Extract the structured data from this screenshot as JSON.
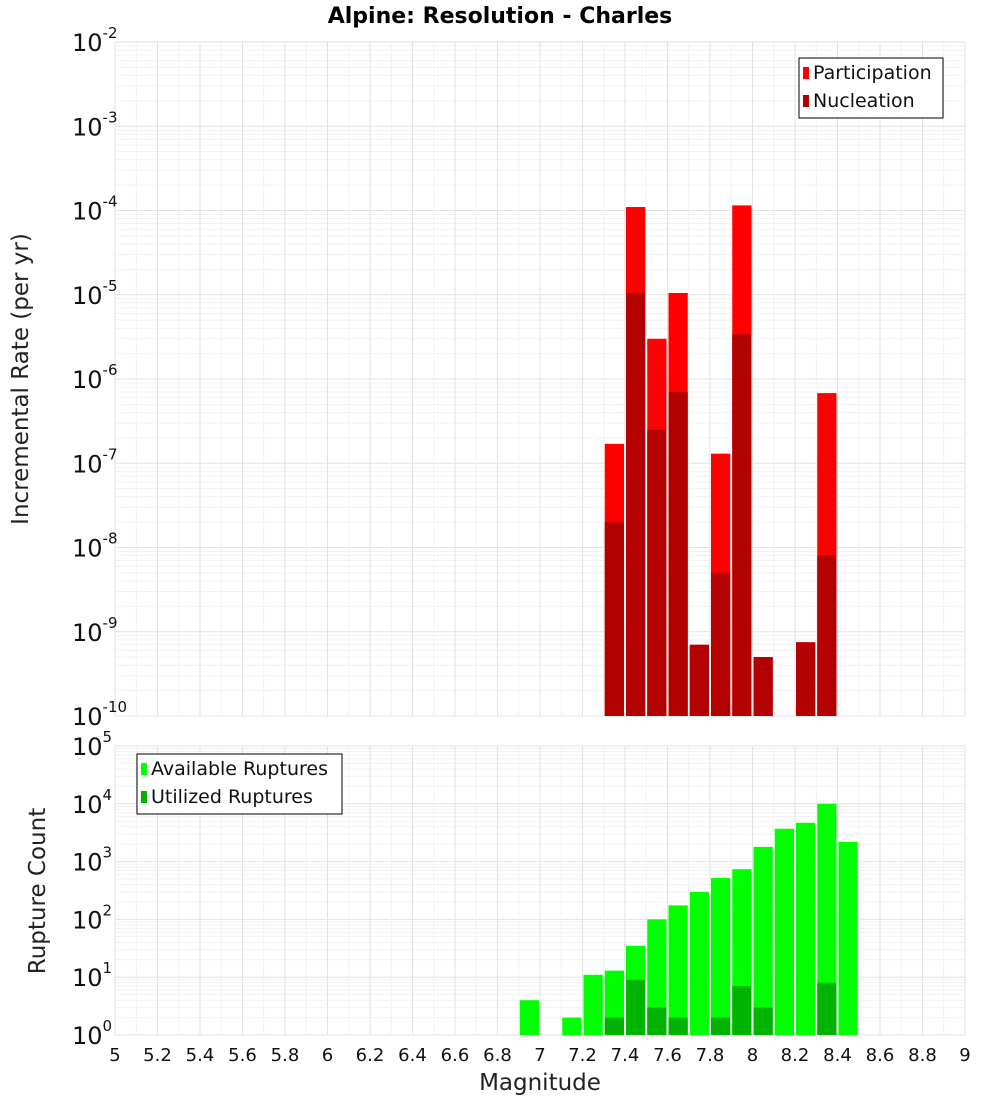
{
  "chart_data": [
    {
      "type": "bar",
      "title": "Alpine: Resolution - Charles",
      "xlabel": "",
      "ylabel": "Incremental Rate (per yr)",
      "y_scale": "log",
      "ylim": [
        1e-10,
        0.01
      ],
      "xlim": [
        5,
        9
      ],
      "bar_width": 0.1,
      "grid": true,
      "legend_position": "top-right",
      "series": [
        {
          "name": "Participation",
          "color": "#ff0000",
          "x": [
            7.35,
            7.45,
            7.55,
            7.65,
            7.75,
            7.85,
            7.95,
            8.05,
            8.25,
            8.35
          ],
          "values": [
            1.7e-07,
            0.00011,
            3e-06,
            1.05e-05,
            7e-10,
            1.3e-07,
            0.000115,
            5e-10,
            7.5e-10,
            6.8e-07
          ]
        },
        {
          "name": "Nucleation",
          "color": "#b30000",
          "x": [
            7.35,
            7.45,
            7.55,
            7.65,
            7.75,
            7.85,
            7.95,
            8.05,
            8.25,
            8.35
          ],
          "values": [
            2e-08,
            1.05e-05,
            2.5e-07,
            7e-07,
            7e-10,
            5e-09,
            3.4e-06,
            5e-10,
            7.5e-10,
            8e-09
          ]
        }
      ]
    },
    {
      "type": "bar",
      "title": "",
      "xlabel": "Magnitude",
      "ylabel": "Rupture Count",
      "y_scale": "log",
      "ylim": [
        1,
        100000.0
      ],
      "xlim": [
        5,
        9
      ],
      "bar_width": 0.1,
      "grid": true,
      "legend_position": "top-left",
      "series": [
        {
          "name": "Available Ruptures",
          "color": "#00ff00",
          "x": [
            6.45,
            6.95,
            7.05,
            7.15,
            7.25,
            7.35,
            7.45,
            7.55,
            7.65,
            7.75,
            7.85,
            7.95,
            8.05,
            8.15,
            8.25,
            8.35,
            8.45
          ],
          "values": [
            1,
            4,
            1,
            2,
            11,
            13,
            35,
            100,
            175,
            300,
            520,
            740,
            1800,
            3700,
            4700,
            10000,
            2200
          ]
        },
        {
          "name": "Utilized Ruptures",
          "color": "#00b300",
          "x": [
            7.35,
            7.45,
            7.55,
            7.65,
            7.75,
            7.85,
            7.95,
            8.05,
            8.25,
            8.35
          ],
          "values": [
            2,
            9,
            3,
            2,
            1,
            2,
            7,
            3,
            1,
            8
          ]
        }
      ]
    }
  ],
  "x_ticks": [
    "5",
    "5.2",
    "5.4",
    "5.6",
    "5.8",
    "6",
    "6.2",
    "6.4",
    "6.6",
    "6.8",
    "7",
    "7.2",
    "7.4",
    "7.6",
    "7.8",
    "8",
    "8.2",
    "8.4",
    "8.6",
    "8.8",
    "9"
  ]
}
